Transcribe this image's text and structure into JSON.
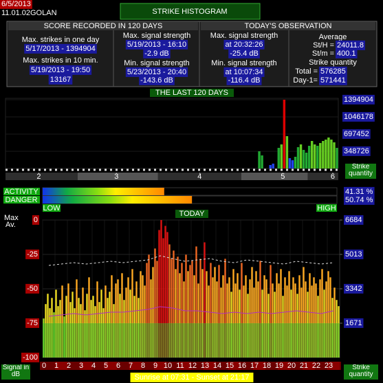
{
  "header": {
    "date": "6/5/2013",
    "station": "11.01.02GOLAN",
    "title": "STRIKE HISTOGRAM"
  },
  "score": {
    "title": "SCORE RECORDED IN 120 DAYS",
    "max_day_label": "Max. strikes in one day",
    "max_day_value": "5/17/2013 - 1394904",
    "max_10min_label": "Max. strikes in 10 min.",
    "max_10min_time": "5/19/2013 - 19:50",
    "max_10min_value": "13167",
    "max_signal_label": "Max. signal strength",
    "max_signal_time": "5/19/2013 - 16:10",
    "max_signal_value": "-2.9 dB",
    "min_signal_label": "Min. signal strength",
    "min_signal_time": "5/23/2013 - 20:40",
    "min_signal_value": "-143.6 dB"
  },
  "observation": {
    "title": "TODAY'S OBSERVATION",
    "max_signal_label": "Max. signal strength",
    "max_signal_time": "at 20:32:26",
    "max_signal_value": "-25.4 dB",
    "min_signal_label": "Min. signal strength",
    "min_signal_time": "at 10:07:34",
    "min_signal_value": "-116.4 dB",
    "average_label": "Average",
    "sth_label": "St/H =",
    "sth_value": "24011.8",
    "stm_label": "St/m =",
    "stm_value": "400.1",
    "quantity_label": "Strike quantity",
    "total_label": "Total =",
    "total_value": "576285",
    "day1_label": "Day-1=",
    "day1_value": "571441"
  },
  "meters": {
    "names": [
      "ACTIVITY",
      "DANGER"
    ],
    "values": [
      41.31,
      50.74
    ],
    "value_labels": [
      "41.31 %",
      "50.74 %"
    ],
    "xlim": [
      0,
      100
    ],
    "low_label": "LOW",
    "high_label": "HIGH"
  },
  "chart_data": [
    {
      "type": "bar",
      "title": "THE LAST 120 DAYS",
      "x": [
        92,
        93,
        96,
        97,
        99,
        100,
        101,
        102,
        103,
        104,
        105,
        106,
        107,
        108,
        109,
        110,
        111,
        112,
        113,
        114,
        115,
        116,
        117,
        118,
        119,
        120
      ],
      "values": [
        349000,
        265000,
        70000,
        98000,
        418000,
        488000,
        1394904,
        656000,
        209000,
        167000,
        237000,
        432000,
        488000,
        377000,
        321000,
        460000,
        558000,
        488000,
        460000,
        516000,
        558000,
        586000,
        628000,
        586000,
        530000,
        418000
      ],
      "xlim": [
        0,
        120
      ],
      "ylim": [
        0,
        1394904
      ],
      "yticks": [
        1394904,
        1046178,
        697452,
        348726
      ],
      "xticks": [
        {
          "value": 12,
          "label": "2"
        },
        {
          "value": 40,
          "label": "3"
        },
        {
          "value": 70,
          "label": "4"
        },
        {
          "value": 100,
          "label": "5"
        },
        {
          "value": 118,
          "label": "6"
        }
      ],
      "y_label": "Strike quantity",
      "colors": [
        "#2244ee",
        "#22aa33",
        "#66cc22",
        "#dddd22",
        "#ff8800",
        "#dd0000"
      ]
    },
    {
      "type": "bar",
      "title": "TODAY",
      "categories": [
        "0",
        "1",
        "2",
        "3",
        "4",
        "5",
        "6",
        "7",
        "8",
        "9",
        "10",
        "11",
        "12",
        "13",
        "14",
        "15",
        "16",
        "17",
        "18",
        "19",
        "20",
        "21",
        "22",
        "23"
      ],
      "values": [
        [
          1900,
          2600,
          3100,
          2400,
          2900,
          2200
        ],
        [
          3300,
          2500,
          2800,
          3500,
          2000,
          3000
        ],
        [
          3600,
          2700,
          3200,
          2400,
          3800,
          2900
        ],
        [
          2600,
          3400,
          2300,
          3100,
          3900,
          2800
        ],
        [
          3000,
          2500,
          3700,
          2700,
          3300,
          2400
        ],
        [
          3500,
          2900,
          3200,
          4000,
          2600,
          3600
        ],
        [
          3800,
          3100,
          4100,
          2800,
          3400,
          3900
        ],
        [
          3300,
          4300,
          3000,
          3700,
          2900,
          4200
        ],
        [
          4000,
          3500,
          4600,
          5000,
          3800,
          4400
        ],
        [
          5300,
          4700,
          6200,
          6684,
          5800,
          6400
        ],
        [
          6100,
          5500,
          4800,
          5200,
          4300,
          4900
        ],
        [
          4100,
          4600,
          3700,
          5000,
          4200,
          4500
        ],
        [
          4700,
          4000,
          5400,
          3600,
          4800,
          4300
        ],
        [
          5600,
          4200,
          3500,
          4600,
          3900,
          4400
        ],
        [
          3700,
          4500,
          3400,
          4000,
          4800,
          3600
        ],
        [
          3900,
          3200,
          4300,
          3600,
          4100,
          3300
        ],
        [
          4600,
          3500,
          4000,
          3100,
          3800,
          4400
        ],
        [
          3400,
          4200,
          3700,
          4700,
          3300,
          4000
        ],
        [
          3800,
          3100,
          4500,
          3600,
          3200,
          4100
        ],
        [
          3600,
          4300,
          3000,
          3900,
          3500,
          4200
        ],
        [
          3300,
          3900,
          3600,
          3100,
          4000,
          3400
        ],
        [
          4400,
          3700,
          3200,
          4100,
          3500,
          3900
        ],
        [
          3600,
          3000,
          3800,
          4300,
          3300,
          3700
        ],
        [
          4200,
          3900,
          2900,
          3400,
          2800,
          2500
        ]
      ],
      "bars_axis": "y2",
      "series": [
        {
          "name": "Max",
          "color": "#dddddd",
          "values": [
            -33,
            -32,
            -31,
            -32,
            -31,
            -30,
            -31,
            -30,
            -29,
            -26,
            -28,
            -30,
            -29,
            -28,
            -30,
            -31,
            -29,
            -30,
            -31,
            -32,
            -30,
            -31,
            -32,
            -31
          ]
        },
        {
          "name": "Av.",
          "color": "#b030c0",
          "values": [
            -70,
            -69,
            -68,
            -69,
            -68,
            -67,
            -67,
            -66,
            -65,
            -63,
            -64,
            -66,
            -66,
            -67,
            -68,
            -67,
            -68,
            -67,
            -68,
            -67,
            -66,
            -67,
            -68,
            -66
          ]
        }
      ],
      "ylim": [
        -100,
        0
      ],
      "yticks": [
        0,
        -25,
        -50,
        -75,
        -100
      ],
      "y2lim": [
        0,
        6684
      ],
      "y2ticks": [
        6684,
        5013,
        3342,
        1671
      ],
      "y_label": "Signal in dB",
      "y2_label": "Strike quantity",
      "grid": true,
      "colors": [
        "#33cc33",
        "#99dd22",
        "#eedd22",
        "#ffaa22",
        "#ee6622",
        "#dd1111"
      ],
      "annotation": "Sunrise at 07:31  -  Sunset at 21:17"
    }
  ]
}
